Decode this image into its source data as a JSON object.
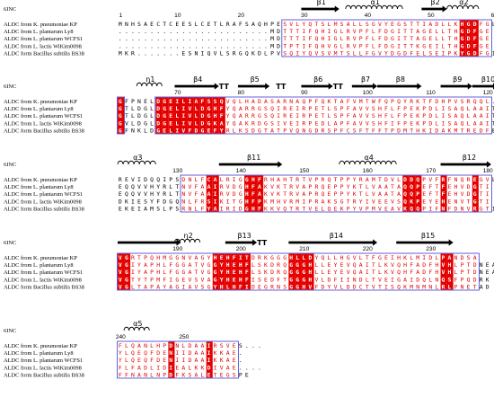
{
  "structure_label": "6INC",
  "species": [
    "ALDC from K. pneumoniae KP",
    "ALDC from L. plantarum Ly8",
    "ALDC from L. plantarum WCFS1",
    "ALDC from L. lactis WiKim0098",
    "ALDC form Bacillus subtilis BS38"
  ],
  "colors": {
    "conserved_bg": "#e50000",
    "similar_text": "#e50000",
    "box": "#3b3bd6",
    "plain": "#000000"
  },
  "legend_note": "Red background = strictly conserved; red letters in blue boxes = similar residues",
  "blocks": [
    {
      "ruler": [
        {
          "label": "1",
          "col": 0
        },
        {
          "label": "10",
          "col": 9
        },
        {
          "label": "20",
          "col": 19
        },
        {
          "label": "30",
          "col": 29
        },
        {
          "label": "40",
          "col": 39
        },
        {
          "label": "50",
          "col": 49
        },
        {
          "label": "60",
          "col": 59
        }
      ],
      "features": [
        {
          "type": "arrow",
          "label": "β1",
          "from": 29,
          "to": 34
        },
        {
          "type": "helix",
          "label": "α1",
          "from": 36,
          "to": 44
        },
        {
          "type": "arrow",
          "label": "β2",
          "from": 48,
          "to": 51
        },
        {
          "type": "helix",
          "label": "α2",
          "from": 52,
          "to": 56
        },
        {
          "type": "arrow",
          "label": "β3",
          "from": 60,
          "to": 62
        }
      ],
      "rows": [
        "MNHSAECTCEESLCETLRAFSAQHPESVLYQTSLMSALLSGVYEGSTTIADLLKHGDFGL",
        "........................MDTTTIFQHIGLRVPFLFDGITTAGELLTHGDFGE",
        "........................MDTTTIFQHIGLRVPFLFDGITTAGELLTHGDFGE",
        "........................MDTPTIFQHVGLRVPFLFDGITTKGEILTHGDFGE",
        "MKR.......ESNIQVLSRGQKDLPVSQIYQVSVMTSLLFGVYDGDFELSEIPKYGDFGI"
      ],
      "bg_cols": [
        54,
        55,
        56
      ],
      "box_cols": [
        26,
        27,
        28,
        29,
        30,
        31,
        32,
        33,
        34,
        35,
        36,
        37,
        38,
        39,
        40,
        41,
        42,
        43,
        44,
        45,
        46,
        47,
        48,
        49,
        50,
        51,
        52,
        53,
        57,
        58
      ]
    },
    {
      "ruler": [
        {
          "label": "70",
          "col": 9
        },
        {
          "label": "80",
          "col": 19
        },
        {
          "label": "90",
          "col": 29
        },
        {
          "label": "100",
          "col": 39
        },
        {
          "label": "110",
          "col": 49
        },
        {
          "label": "120",
          "col": 58
        }
      ],
      "features": [
        {
          "type": "helix",
          "label": "η1",
          "from": 3,
          "to": 6
        },
        {
          "type": "arrow",
          "label": "β4",
          "from": 9,
          "to": 15
        },
        {
          "type": "tt",
          "label": "TT",
          "from": 16,
          "to": 18
        },
        {
          "type": "arrow",
          "label": "β5",
          "from": 19,
          "to": 23
        },
        {
          "type": "tt",
          "label": "TT",
          "from": 25,
          "to": 27
        },
        {
          "type": "arrow",
          "label": "β6",
          "from": 29,
          "to": 33
        },
        {
          "type": "tt",
          "label": "TT",
          "from": 34,
          "to": 36
        },
        {
          "type": "arrow",
          "label": "β7",
          "from": 37,
          "to": 40
        },
        {
          "type": "arrow",
          "label": "β8",
          "from": 41,
          "to": 47
        },
        {
          "type": "arrow",
          "label": "β9",
          "from": 51,
          "to": 55
        },
        {
          "type": "arrow",
          "label": "β10",
          "from": 56,
          "to": 59
        }
      ],
      "rows": [
        "GFPNELDGEILIAFSSQVQLHADASARNAQPFQKTAFVMTWFQPQYRKTFDHPVSRQQL.",
        "GTLDGLDGELIVLDGHFYQARRGSQIREIRPETLSPFAVVSHFLFPEKPDLISAQLAAIT",
        "GTLDGLDGELIVLDGHFYQARRGSQIREIRPETLSPFAVVSHFLFPEKPDLISAQLAAIT",
        "GVLDGLDGELIVLDGKAYQAKRDGSIVEIRPEDLAPFAVVSHFIFPEKPDLISAQLAAIT",
        "GFNKLDGELIVFDGEFYRLKSDGTATPVQNGDRSPFCSFTFFTPDMTHKIDAKMTREDFE"
      ],
      "bg_cols": [
        0,
        6,
        7,
        8,
        9,
        10,
        11,
        12,
        13,
        14,
        15,
        16
      ],
      "box_cols": [
        17,
        18,
        19,
        20,
        21,
        22,
        23,
        24,
        25,
        26,
        27,
        28,
        29,
        30,
        31,
        32,
        33,
        34,
        35,
        36,
        37,
        38,
        39,
        40,
        41,
        42,
        43,
        44,
        45,
        46,
        47,
        48,
        49,
        50,
        51,
        52,
        53,
        54,
        55,
        56,
        57,
        58
      ]
    },
    {
      "ruler": [
        {
          "label": "130",
          "col": 9
        },
        {
          "label": "140",
          "col": 19
        },
        {
          "label": "150",
          "col": 29
        },
        {
          "label": "160",
          "col": 39
        },
        {
          "label": "170",
          "col": 49
        },
        {
          "label": "180",
          "col": 58
        }
      ],
      "features": [
        {
          "type": "helix",
          "label": "α3",
          "from": 0,
          "to": 5
        },
        {
          "type": "arrow",
          "label": "β11",
          "from": 16,
          "to": 25
        },
        {
          "type": "helix",
          "label": "α4",
          "from": 35,
          "to": 43
        },
        {
          "type": "arrow",
          "label": "β12",
          "from": 51,
          "to": 58
        }
      ],
      "rows": [
        "REVIDQQIPSDNLFCALRIGGHFRHAHTRTVPRQTPPYRAMTDVLDDQPVFRFNQREGVL",
        "EQQVVHYRLTNVFAAIRVDGHFAKVKTRVAPRQEPPYKTLVAATAQQPEFTFEHVDGTI",
        "EQQVVHYRLTNVFAAIRVDGHFAKVKTRVAPRQEPPYKTLVAATAQQPEFTFEHVDGTI",
        "DKIESYFDGQNLFRSIKITGHFPKMHVRMIPRAKSGTRYIVEEVSQKPEYEHENVTGTI",
        "EKEIAMSLPSRNLFYAIRIDGHFKKVQTRTVELQEKPYVPMVEAVKQQPIFNFDNVRGTI"
      ],
      "bg_cols": [
        14,
        15,
        20,
        21,
        22,
        45,
        46,
        47,
        51,
        56
      ],
      "box_cols": [
        10,
        11,
        12,
        13,
        16,
        17,
        18,
        19,
        23,
        24,
        25,
        26,
        27,
        28,
        29,
        30,
        31,
        32,
        33,
        34,
        35,
        36,
        37,
        38,
        39,
        40,
        41,
        42,
        43,
        44,
        48,
        49,
        50,
        52,
        53,
        54,
        55,
        57,
        58
      ]
    },
    {
      "ruler": [
        {
          "label": "190",
          "col": 9
        },
        {
          "label": "200",
          "col": 19
        },
        {
          "label": "210",
          "col": 29
        },
        {
          "label": "220",
          "col": 39
        },
        {
          "label": "230",
          "col": 49
        }
      ],
      "features": [
        {
          "type": "arrow",
          "label": "",
          "from": 0,
          "to": 9
        },
        {
          "type": "helix",
          "label": "η2",
          "from": 9,
          "to": 12
        },
        {
          "type": "arrow",
          "label": "β13",
          "from": 17,
          "to": 21
        },
        {
          "type": "tt",
          "label": "TT",
          "from": 22,
          "to": 24
        },
        {
          "type": "arrow",
          "label": "β14",
          "from": 27,
          "to": 40
        },
        {
          "type": "arrow",
          "label": "β15",
          "from": 44,
          "to": 52
        }
      ],
      "rows": [
        "VGRTPQHMGGNVAGYHEHFITDRKGGGHLLDYQLLHGVLTFGEIHKLMIDLPANDSA",
        "VGIYAPHLFGGATVGGYHEHFLSKDRQGGGHLLEYEVQAITLKVQHFADFHVHLPTDNEA",
        "VGIYAPHLFGGATVGGYHEHFLSKDRQGGGHLLEYEVQAITLKVQHFADFHVHLPTDNEA",
        "VGTYTPMFIGEVSVAGYHEHFISEDFTGGGHVLDFIINDLTVEIGAIDQLNQSFPQDRK",
        "VGLTAPAYAGIAVSGYHLHFIDEGRNSGGHVFDYVLDDCTVTISQKMNMNLRLPNETAD"
      ],
      "bg_cols": [
        0,
        1,
        15,
        16,
        17,
        18,
        19,
        20,
        27,
        28,
        29,
        30,
        51,
        52
      ],
      "box_cols": [
        2,
        3,
        4,
        5,
        6,
        7,
        8,
        9,
        10,
        11,
        12,
        13,
        14,
        21,
        22,
        23,
        24,
        25,
        26,
        31,
        32,
        33,
        34,
        35,
        36,
        37,
        38,
        39,
        40,
        41,
        42,
        43,
        44,
        45,
        46,
        47,
        48,
        49,
        50,
        53,
        54,
        55,
        56
      ]
    },
    {
      "ruler": [
        {
          "label": "240",
          "col": 0
        },
        {
          "label": "250",
          "col": 10
        }
      ],
      "features": [
        {
          "type": "helix",
          "label": "α5",
          "from": 1,
          "to": 4
        }
      ],
      "rows": [
        "FLQANLHPDNLDAAIRSVES...",
        "YLQEQFDENIIDAAIKKAE.",
        "YLQEQFDENIIDAAIKKAE.",
        "FLFADLIDIEALKKDIVAE....",
        "FFNANLNPDFKSALETEGSPE"
      ],
      "bg_cols": [
        8,
        14
      ],
      "box_cols": [
        0,
        1,
        2,
        3,
        4,
        5,
        6,
        7,
        9,
        10,
        11,
        12,
        13,
        15,
        16,
        17,
        18
      ]
    }
  ]
}
